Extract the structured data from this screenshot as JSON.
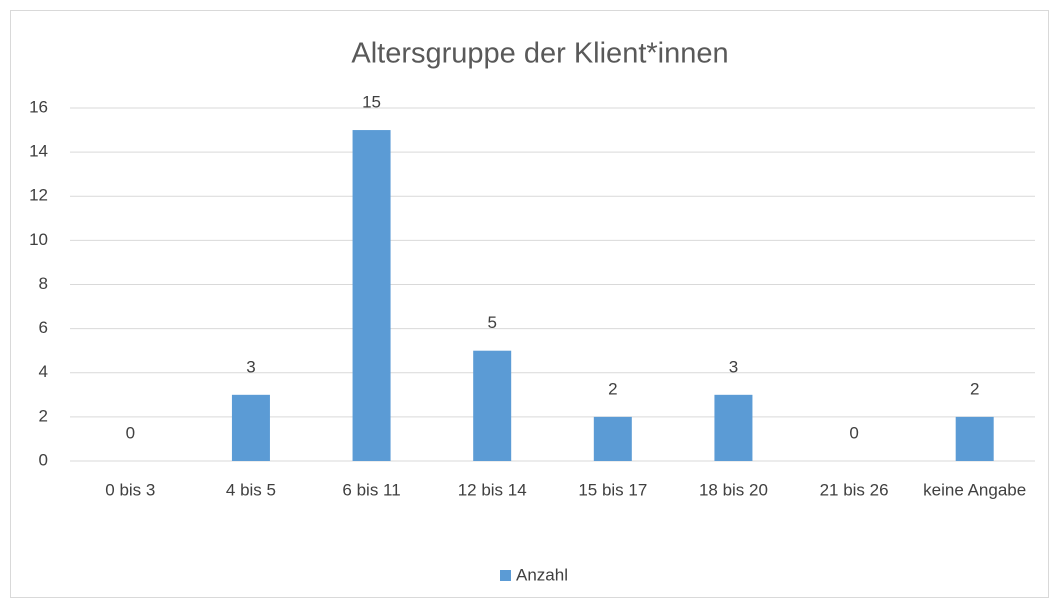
{
  "chart_data": {
    "type": "bar",
    "title": "Altersgruppe der Klient*innen",
    "categories": [
      "0 bis 3",
      "4 bis 5",
      "6 bis 11",
      "12 bis 14",
      "15 bis 17",
      "18 bis 20",
      "21 bis 26",
      "keine Angabe"
    ],
    "series": [
      {
        "name": "Anzahl",
        "color": "#5b9bd5",
        "values": [
          0,
          3,
          15,
          5,
          2,
          3,
          0,
          2
        ]
      }
    ],
    "ylim": [
      0,
      16
    ],
    "yticks": [
      0,
      2,
      4,
      6,
      8,
      10,
      12,
      14,
      16
    ],
    "grid": true,
    "legend": "bottom"
  }
}
